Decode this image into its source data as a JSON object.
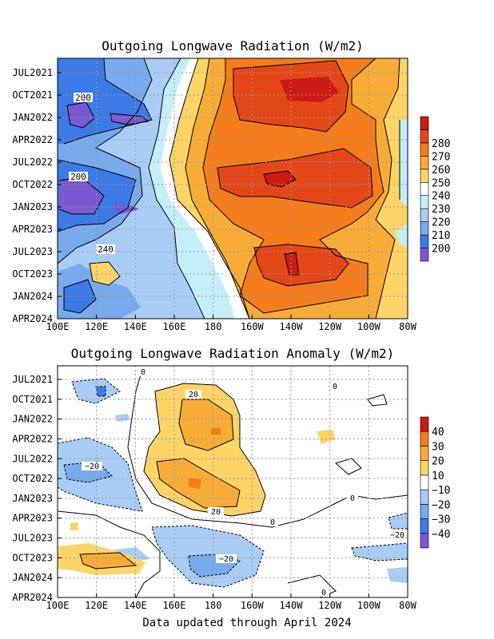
{
  "chart_data": [
    {
      "type": "heatmap",
      "title": "Outgoing Longwave Radiation (W/m2)",
      "xlabel": "",
      "ylabel": "",
      "x_ticks": [
        "100E",
        "120E",
        "140E",
        "160E",
        "180",
        "160W",
        "140W",
        "120W",
        "100W",
        "80W"
      ],
      "y_ticks": [
        "JUL2021",
        "OCT2021",
        "JAN2022",
        "APR2022",
        "JUL2022",
        "OCT2022",
        "JAN2023",
        "APR2023",
        "JUL2023",
        "OCT2023",
        "JAN2024",
        "APR2024"
      ],
      "colorbar": {
        "levels": [
          200,
          210,
          220,
          230,
          240,
          250,
          260,
          270,
          280
        ],
        "labels": [
          "200",
          "210",
          "220",
          "230",
          "240",
          "250",
          "260",
          "270",
          "280"
        ],
        "colors": [
          "#7a58d0",
          "#3c7ae6",
          "#78aaee",
          "#a8ccf4",
          "#c4eefa",
          "#ffffff",
          "#fcd468",
          "#f8ac38",
          "#f47c1c",
          "#e44818",
          "#cc1a14"
        ]
      },
      "contour_labels": [
        "200",
        "200",
        "240"
      ],
      "grid": true
    },
    {
      "type": "heatmap",
      "title": "Outgoing Longwave Radiation Anomaly (W/m2)",
      "xlabel": "",
      "ylabel": "",
      "x_ticks": [
        "100E",
        "120E",
        "140E",
        "160E",
        "180",
        "160W",
        "140W",
        "120W",
        "100W",
        "80W"
      ],
      "y_ticks": [
        "JUL2021",
        "OCT2021",
        "JAN2022",
        "APR2022",
        "JUL2022",
        "OCT2022",
        "JAN2023",
        "APR2023",
        "JUL2023",
        "OCT2023",
        "JAN2024",
        "APR2024"
      ],
      "colorbar": {
        "levels": [
          -40,
          -30,
          -20,
          -10,
          10,
          20,
          30,
          40
        ],
        "labels": [
          "−40",
          "−30",
          "−20",
          "−10",
          "10",
          "20",
          "30",
          "40"
        ],
        "colors": [
          "#7a58d0",
          "#3c7ae6",
          "#78aaee",
          "#a8ccf4",
          "#ffffff",
          "#fcd468",
          "#f8ac38",
          "#f47c1c",
          "#cc1a14"
        ]
      },
      "contour_labels": [
        "0",
        "0",
        "0",
        "0",
        "0",
        "20",
        "20",
        "−20",
        "−20",
        "−20"
      ],
      "grid": true
    }
  ],
  "footer": "Data updated through April 2024"
}
